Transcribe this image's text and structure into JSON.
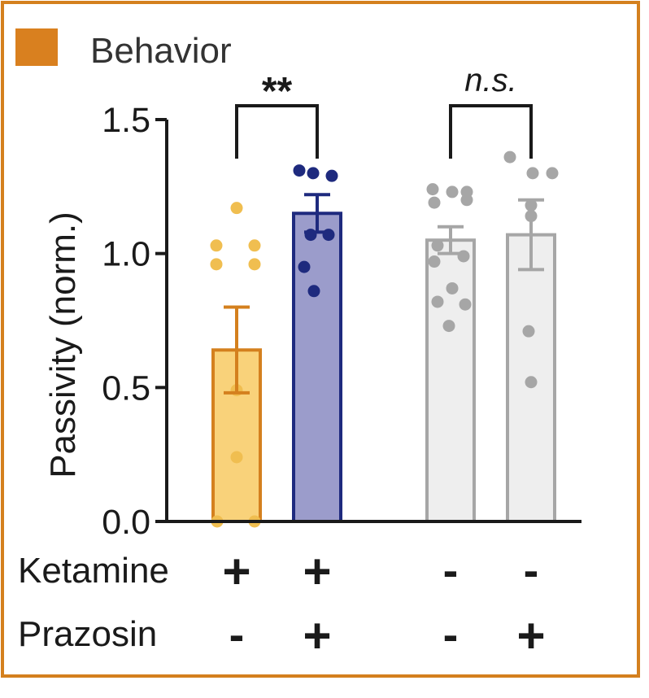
{
  "panel": {
    "title": "Behavior",
    "accent_color": "#d9801f"
  },
  "chart_data": {
    "type": "bar",
    "title": "",
    "xlabel": "",
    "ylabel": "Passivity (norm.)",
    "ylim": [
      0,
      1.5
    ],
    "yticks": [
      0.0,
      0.5,
      1.0,
      1.5
    ],
    "ytick_labels": [
      "0.0",
      "0.5",
      "1.0",
      "1.5"
    ],
    "grid": false,
    "groups": [
      {
        "ketamine": "+",
        "prazosin": "-",
        "mean": 0.64,
        "sem": 0.16,
        "fill": "#f9d27a",
        "edge": "#d4801e",
        "dot": "#f0be50",
        "points": [
          1.17,
          1.03,
          1.03,
          0.96,
          0.96,
          0.49,
          0.24,
          0.0,
          0.0
        ]
      },
      {
        "ketamine": "+",
        "prazosin": "+",
        "mean": 1.15,
        "sem": 0.07,
        "fill": "#9b9ccb",
        "edge": "#1e2a7e",
        "dot": "#1e2a7e",
        "points": [
          1.31,
          1.3,
          1.29,
          1.07,
          1.07,
          0.95,
          0.86
        ]
      },
      {
        "ketamine": "-",
        "prazosin": "-",
        "mean": 1.05,
        "sem": 0.05,
        "fill": "#eeeeee",
        "edge": "#a6a6a6",
        "dot": "#a6a6a6",
        "points": [
          1.24,
          1.23,
          1.23,
          1.19,
          1.2,
          1.03,
          0.99,
          0.97,
          0.87,
          0.82,
          0.81,
          0.73
        ]
      },
      {
        "ketamine": "-",
        "prazosin": "+",
        "mean": 1.07,
        "sem": 0.13,
        "fill": "#eeeeee",
        "edge": "#a6a6a6",
        "dot": "#a6a6a6",
        "points": [
          1.36,
          1.3,
          1.3,
          1.18,
          1.14,
          0.71,
          0.52
        ]
      }
    ],
    "comparisons": [
      {
        "between": [
          0,
          1
        ],
        "label": "**",
        "italic": false
      },
      {
        "between": [
          2,
          3
        ],
        "label": "n.s.",
        "italic": true
      }
    ]
  },
  "factors": {
    "ketamine_label": "Ketamine",
    "prazosin_label": "Prazosin"
  }
}
